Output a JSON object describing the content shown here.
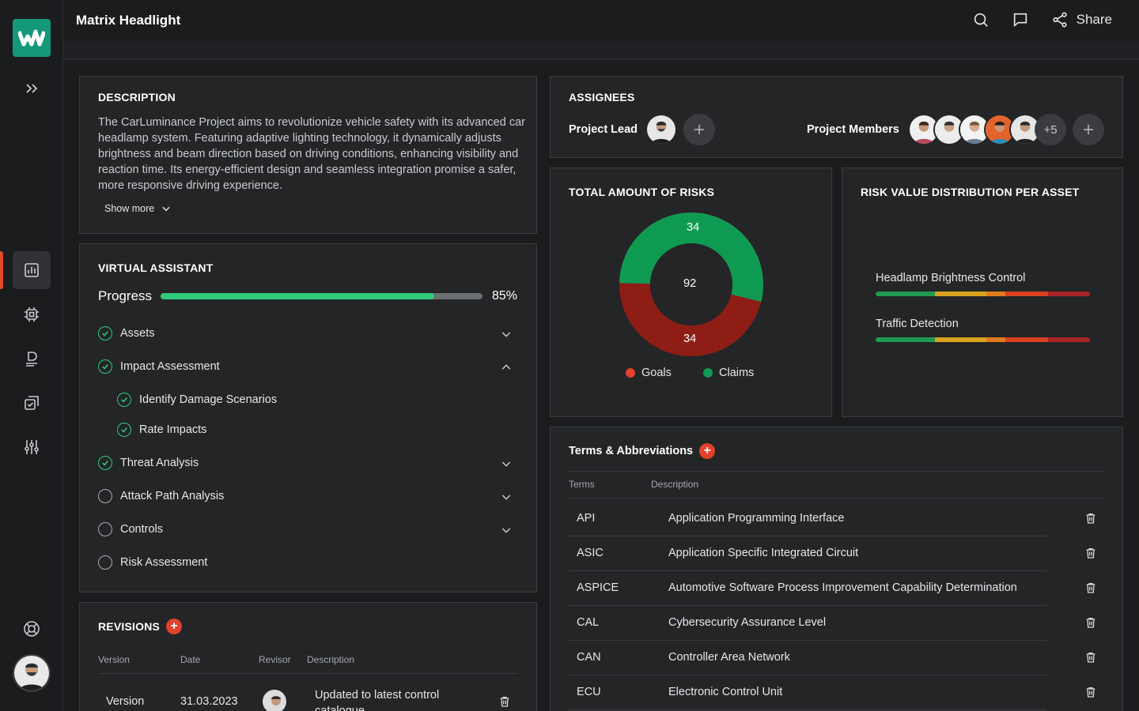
{
  "app": {
    "title": "Matrix Headlight"
  },
  "topbar": {
    "share_label": "Share"
  },
  "colors": {
    "accent": "#15987a",
    "green": "#2fcb7b",
    "red": "#e2412a",
    "donut_green": "#0f9a52",
    "donut_red": "#8e1d16"
  },
  "description": {
    "title": "DESCRIPTION",
    "text": "The CarLuminance Project aims to revolutionize vehicle safety with its advanced car headlamp system. Featuring adaptive lighting technology, it dynamically adjusts brightness and beam direction based on driving conditions, enhancing visibility and reaction time. Its energy-efficient design and seamless integration promise a safer, more responsive driving experience.",
    "show_more": "Show more"
  },
  "assistant": {
    "title": "VIRTUAL ASSISTANT",
    "progress_label": "Progress",
    "progress_value": "85%",
    "progress_fraction": 0.85,
    "steps": [
      {
        "label": "Assets",
        "done": true
      },
      {
        "label": "Impact Assessment",
        "done": true
      },
      {
        "label": "Identify Damage Scenarios",
        "done": true
      },
      {
        "label": "Rate Impacts",
        "done": true
      },
      {
        "label": "Threat Analysis",
        "done": true
      },
      {
        "label": "Attack Path Analysis",
        "done": false
      },
      {
        "label": "Controls",
        "done": false
      },
      {
        "label": "Risk Assessment",
        "done": false
      }
    ]
  },
  "revisions": {
    "title": "REVISIONS",
    "headers": [
      "Version",
      "Date",
      "Revisor",
      "Description"
    ],
    "rows": [
      {
        "version": "Version",
        "date": "31.03.2023",
        "description": "Updated to latest control catalogue"
      }
    ]
  },
  "assignees": {
    "title": "ASSIGNEES",
    "lead_label": "Project Lead",
    "members_label": "Project Members",
    "more_count": "+5"
  },
  "risks": {
    "title": "TOTAL AMOUNT OF RISKS",
    "total": "92",
    "claims_value": "34",
    "goals_value": "34",
    "legend": [
      "Goals",
      "Claims"
    ]
  },
  "distribution": {
    "title": "RISK VALUE DISTRIBUTION PER ASSET",
    "assets": [
      "Headlamp Brightness Control",
      "Traffic Detection"
    ]
  },
  "terms": {
    "title": "Terms & Abbreviations",
    "headers": [
      "Terms",
      "Description"
    ],
    "rows": [
      {
        "term": "API",
        "desc": "Application Programming Interface"
      },
      {
        "term": "ASIC",
        "desc": "Application Specific Integrated Circuit"
      },
      {
        "term": "ASPICE",
        "desc": "Automotive Software Process Improvement Capability Determination"
      },
      {
        "term": "CAL",
        "desc": "Cybersecurity Assurance Level"
      },
      {
        "term": "CAN",
        "desc": "Controller Area Network"
      },
      {
        "term": "ECU",
        "desc": "Electronic Control Unit"
      }
    ]
  }
}
